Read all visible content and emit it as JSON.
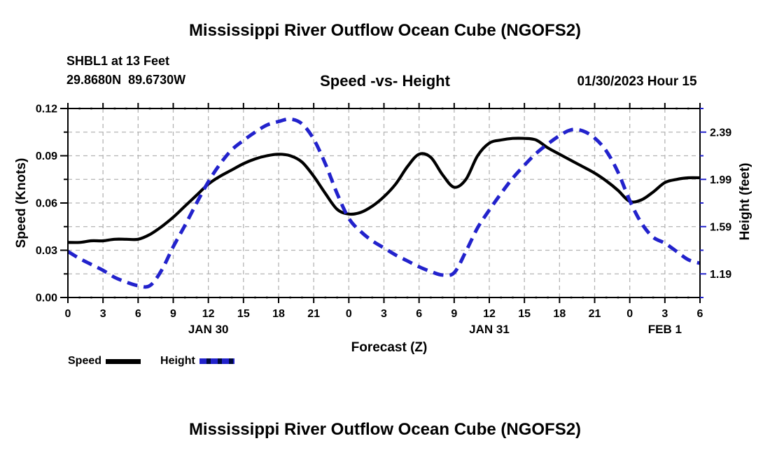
{
  "page": {
    "top_title": "Mississippi River Outflow Ocean Cube (NGOFS2)",
    "bottom_title": "Mississippi River Outflow Ocean Cube (NGOFS2)"
  },
  "header": {
    "station": "SHBL1 at 13 Feet",
    "coordinates": "29.8680N  89.6730W",
    "subtitle": "Speed -vs- Height",
    "forecast_time": "01/30/2023 Hour 15"
  },
  "chart_data": {
    "type": "line",
    "title": "Speed -vs- Height",
    "xlabel": "Forecast (Z)",
    "xlim": [
      0,
      54
    ],
    "x_hours": [
      0,
      1,
      2,
      3,
      4,
      5,
      6,
      7,
      8,
      9,
      10,
      11,
      12,
      13,
      14,
      15,
      16,
      17,
      18,
      19,
      20,
      21,
      22,
      23,
      24,
      25,
      26,
      27,
      28,
      29,
      30,
      31,
      32,
      33,
      34,
      35,
      36,
      37,
      38,
      39,
      40,
      41,
      42,
      43,
      44,
      45,
      46,
      47,
      48,
      49,
      50,
      51,
      52,
      53,
      54
    ],
    "x_major_tick_hours": [
      0,
      3,
      6,
      9,
      12,
      15,
      18,
      21,
      24,
      27,
      30,
      33,
      36,
      39,
      42,
      45,
      48,
      51,
      54
    ],
    "x_tick_labels": [
      "0",
      "3",
      "6",
      "9",
      "12",
      "15",
      "18",
      "21",
      "0",
      "3",
      "6",
      "9",
      "12",
      "15",
      "18",
      "21",
      "0",
      "3",
      "6"
    ],
    "day_labels": [
      {
        "label": "JAN 30",
        "hour": 12
      },
      {
        "label": "JAN 31",
        "hour": 36
      },
      {
        "label": "FEB 1",
        "hour": 51
      }
    ],
    "left_axis": {
      "title": "Speed (Knots)",
      "lim": [
        0.0,
        0.12
      ],
      "tick_values": [
        0.0,
        0.03,
        0.06,
        0.09,
        0.12
      ],
      "tick_labels": [
        "0.00",
        "0.03",
        "0.06",
        "0.09",
        "0.12"
      ],
      "minor_step": 0.015
    },
    "right_axis": {
      "title": "Height (feet)",
      "lim": [
        0.99,
        2.59
      ],
      "tick_values": [
        1.19,
        1.59,
        1.99,
        2.39
      ],
      "tick_labels": [
        "1.19",
        "1.59",
        "1.99",
        "2.39"
      ],
      "minor_step": 0.2
    },
    "grid": {
      "show": true,
      "color": "#b4b4b4",
      "x_every_hours": 3,
      "y_every_left_units": 0.015
    },
    "series": [
      {
        "name": "Speed",
        "axis": "left",
        "units": "knots",
        "color": "#000000",
        "style": "solid",
        "values": [
          0.035,
          0.035,
          0.036,
          0.036,
          0.037,
          0.037,
          0.037,
          0.04,
          0.045,
          0.051,
          0.058,
          0.065,
          0.072,
          0.077,
          0.081,
          0.085,
          0.088,
          0.09,
          0.091,
          0.09,
          0.086,
          0.077,
          0.066,
          0.056,
          0.053,
          0.054,
          0.058,
          0.064,
          0.072,
          0.083,
          0.091,
          0.089,
          0.078,
          0.07,
          0.075,
          0.09,
          0.098,
          0.1,
          0.101,
          0.101,
          0.1,
          0.095,
          0.091,
          0.087,
          0.083,
          0.079,
          0.074,
          0.068,
          0.061,
          0.062,
          0.067,
          0.073,
          0.075,
          0.076,
          0.076
        ]
      },
      {
        "name": "Height",
        "axis": "right",
        "units": "feet",
        "color": "#2222cc",
        "style": "dashed",
        "values": [
          1.38,
          1.32,
          1.27,
          1.22,
          1.16,
          1.12,
          1.09,
          1.09,
          1.22,
          1.42,
          1.6,
          1.79,
          1.97,
          2.12,
          2.24,
          2.32,
          2.39,
          2.45,
          2.48,
          2.5,
          2.46,
          2.33,
          2.12,
          1.87,
          1.66,
          1.55,
          1.47,
          1.41,
          1.35,
          1.3,
          1.25,
          1.21,
          1.18,
          1.2,
          1.38,
          1.58,
          1.73,
          1.87,
          2.0,
          2.11,
          2.21,
          2.29,
          2.36,
          2.41,
          2.4,
          2.34,
          2.23,
          2.05,
          1.81,
          1.62,
          1.5,
          1.45,
          1.38,
          1.31,
          1.28
        ]
      }
    ],
    "legend": {
      "position": "bottom-left",
      "entries": [
        "Speed",
        "Height"
      ]
    }
  }
}
